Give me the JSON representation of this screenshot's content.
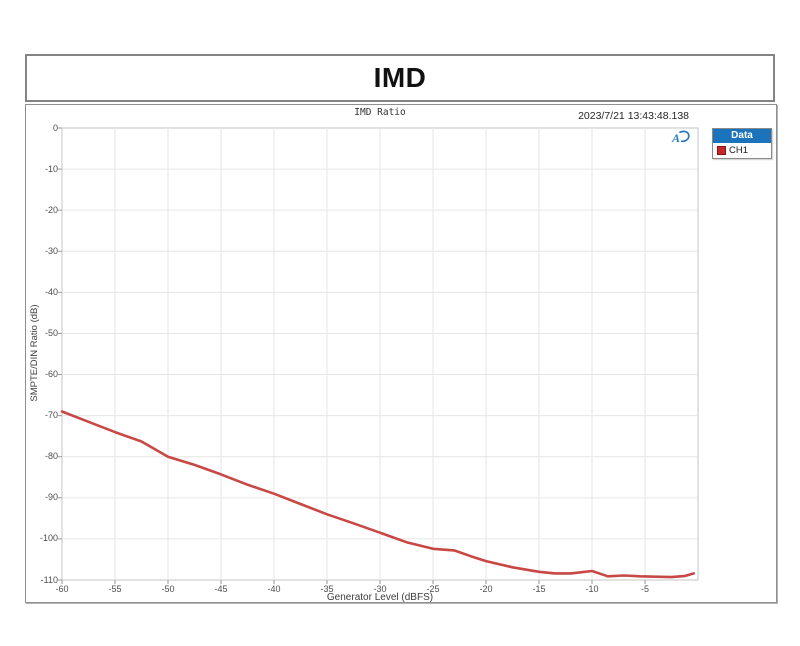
{
  "window": {
    "title": "IMD"
  },
  "chart": {
    "title": "IMD Ratio",
    "timestamp": "2023/7/21 13:43:48.138",
    "xlabel": "Generator Level (dBFS)",
    "ylabel": "SMPTE/DIN Ratio (dB)",
    "logo": "audio-precision",
    "legend": {
      "header": "Data",
      "items": [
        {
          "label": "CH1",
          "color": "#c62828"
        }
      ]
    },
    "colors": {
      "series": "#c74845",
      "legend_header_bg": "#1b74bb",
      "grid": "#e6e6e6",
      "plot_border": "#c5c5c5",
      "tick": "#9a9a9a"
    }
  },
  "chart_data": {
    "type": "line",
    "title": "IMD Ratio",
    "xlabel": "Generator Level (dBFS)",
    "ylabel": "SMPTE/DIN Ratio (dB)",
    "xlim": [
      -60,
      0
    ],
    "ylim": [
      -110,
      0
    ],
    "x_ticks": [
      -60,
      -55,
      -50,
      -45,
      -40,
      -35,
      -30,
      -25,
      -20,
      -15,
      -10,
      -5
    ],
    "y_ticks": [
      0,
      -10,
      -20,
      -30,
      -40,
      -50,
      -60,
      -70,
      -80,
      -90,
      -100,
      -110
    ],
    "grid": true,
    "legend_position": "outside-top-right",
    "series": [
      {
        "name": "CH1",
        "color": "#c74845",
        "x": [
          -60,
          -57.5,
          -55,
          -52.5,
          -50,
          -47.5,
          -45,
          -42.5,
          -40,
          -37.5,
          -35,
          -32.5,
          -30,
          -27.5,
          -25,
          -23,
          -21,
          -20,
          -17.5,
          -15,
          -13.5,
          -12,
          -10,
          -8.5,
          -7,
          -5.5,
          -4,
          -2.5,
          -1.2,
          -0.4
        ],
        "y": [
          -69,
          -71.5,
          -74,
          -76.3,
          -80,
          -82,
          -84.3,
          -86.8,
          -89,
          -91.5,
          -94,
          -96.2,
          -98.5,
          -100.8,
          -102.4,
          -102.8,
          -104.6,
          -105.4,
          -106.9,
          -108,
          -108.4,
          -108.4,
          -107.8,
          -109.1,
          -108.9,
          -109.1,
          -109.2,
          -109.3,
          -109.0,
          -108.4
        ]
      }
    ]
  }
}
